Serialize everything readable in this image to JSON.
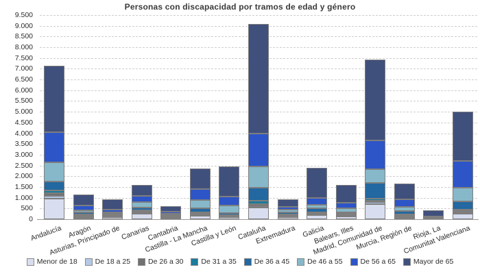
{
  "title": "Personas con discapacidad por tramos de edad y género",
  "axes": {
    "ytick_labels": [
      "0",
      "500",
      "1.000",
      "1.500",
      "2.000",
      "2.500",
      "3.000",
      "3.500",
      "4.000",
      "4.500",
      "5.000",
      "5.500",
      "6.000",
      "6.500",
      "7.000",
      "7.500",
      "8.000",
      "8.500",
      "9.000",
      "9.500"
    ]
  },
  "chart_data": {
    "type": "bar",
    "stacked": true,
    "title": "Personas con discapacidad por tramos de edad y género",
    "xlabel": "",
    "ylabel": "",
    "ylim": [
      0,
      9500
    ],
    "ytick_step": 500,
    "grid": true,
    "legend_position": "bottom",
    "categories": [
      "Andalucía",
      "Aragón",
      "Asturias, Principado de",
      "Canarias",
      "Cantabria",
      "Castilla - La Mancha",
      "Castilla y León",
      "Cataluña",
      "Extremadura",
      "Galicia",
      "Balears, Illes",
      "Madrid, Comunidad de",
      "Murcia, Región de",
      "Rioja, La",
      "Comunitat Valenciana"
    ],
    "series": [
      {
        "name": "Menor de 18",
        "color": "#d8ddef",
        "values": [
          950,
          70,
          90,
          270,
          60,
          150,
          100,
          540,
          110,
          190,
          120,
          700,
          80,
          20,
          250
        ]
      },
      {
        "name": "De 18 a 25",
        "color": "#b3c9e6",
        "values": [
          150,
          50,
          50,
          50,
          40,
          50,
          30,
          60,
          40,
          40,
          40,
          100,
          50,
          10,
          60
        ]
      },
      {
        "name": "De 26 a 30",
        "color": "#717171",
        "values": [
          100,
          40,
          30,
          40,
          30,
          45,
          30,
          90,
          40,
          50,
          50,
          50,
          30,
          10,
          60
        ]
      },
      {
        "name": "De 31 a 35",
        "color": "#1a7b9c",
        "values": [
          130,
          70,
          60,
          60,
          30,
          65,
          30,
          160,
          40,
          50,
          40,
          110,
          60,
          10,
          80
        ]
      },
      {
        "name": "De 36 a 45",
        "color": "#2368a0",
        "values": [
          410,
          80,
          40,
          110,
          50,
          210,
          110,
          610,
          90,
          170,
          80,
          740,
          160,
          20,
          370
        ]
      },
      {
        "name": "De 46 a 55",
        "color": "#86b8ca",
        "values": [
          920,
          110,
          60,
          260,
          50,
          370,
          340,
          990,
          120,
          170,
          180,
          640,
          210,
          20,
          640
        ]
      },
      {
        "name": "De 56 a 65",
        "color": "#2d55c8",
        "values": [
          1390,
          210,
          110,
          300,
          100,
          510,
          420,
          1540,
          150,
          320,
          260,
          1330,
          320,
          50,
          1250
        ]
      },
      {
        "name": "Mayor de 65",
        "color": "#40507d",
        "values": [
          3100,
          510,
          490,
          500,
          250,
          970,
          1380,
          5100,
          340,
          1400,
          820,
          3760,
          750,
          280,
          2300
        ]
      }
    ]
  }
}
